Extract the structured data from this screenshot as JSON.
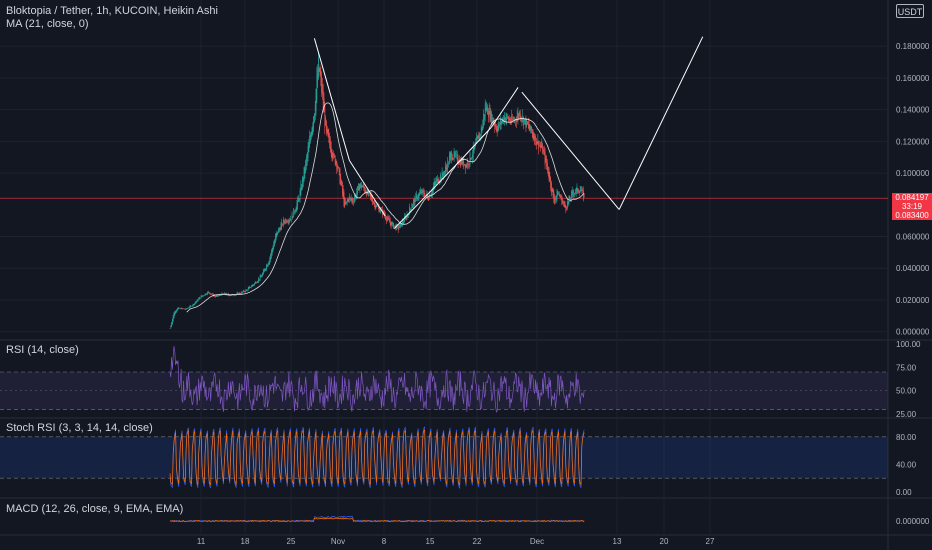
{
  "header": {
    "symbol_line": "Bloktopia / Tether, 1h, KUCOIN, Heikin Ashi",
    "ma_label": "MA (21, close, 0)",
    "currency_button": "USDT"
  },
  "price_tag": {
    "price": "0.084197",
    "countdown": "33:19",
    "ma_value": "0.083400"
  },
  "colors": {
    "background": "#131722",
    "grid": "#1e222d",
    "up_candle": "#26a69a",
    "down_candle": "#ef5350",
    "ma_line": "#ffffff",
    "rsi_line": "#7e57c2",
    "stoch_k": "#2962ff",
    "stoch_d": "#ff6d00",
    "price_line": "#f23645"
  },
  "chart_data": [
    {
      "type": "candlestick",
      "title": "Bloktopia / Tether, 1h, KUCOIN, Heikin Ashi",
      "y_ticks": [
        "0.180000",
        "0.160000",
        "0.140000",
        "0.120000",
        "0.100000",
        "0.060000",
        "0.040000",
        "0.020000",
        "0.000000"
      ],
      "ylim": [
        -0.004,
        0.206
      ],
      "x_ticks": [
        "11",
        "18",
        "25",
        "Nov",
        "8",
        "15",
        "22",
        "Dec",
        "13",
        "20",
        "27"
      ],
      "price_path": [
        [
          0,
          0.002
        ],
        [
          0.5,
          0.012
        ],
        [
          1,
          0.015
        ],
        [
          2,
          0.014
        ],
        [
          3,
          0.017
        ],
        [
          4,
          0.022
        ],
        [
          5,
          0.025
        ],
        [
          6,
          0.022
        ],
        [
          7,
          0.024
        ],
        [
          8,
          0.023
        ],
        [
          9,
          0.024
        ],
        [
          10,
          0.026
        ],
        [
          11,
          0.03
        ],
        [
          12,
          0.035
        ],
        [
          13,
          0.045
        ],
        [
          14,
          0.062
        ],
        [
          15,
          0.07
        ],
        [
          16,
          0.072
        ],
        [
          17,
          0.085
        ],
        [
          18,
          0.11
        ],
        [
          19,
          0.14
        ],
        [
          19.5,
          0.17
        ],
        [
          20,
          0.15
        ],
        [
          20.5,
          0.125
        ],
        [
          21,
          0.118
        ],
        [
          21.5,
          0.11
        ],
        [
          22,
          0.105
        ],
        [
          22.5,
          0.092
        ],
        [
          23,
          0.078
        ],
        [
          23.5,
          0.085
        ],
        [
          24,
          0.082
        ],
        [
          25,
          0.093
        ],
        [
          26,
          0.087
        ],
        [
          27,
          0.08
        ],
        [
          28,
          0.075
        ],
        [
          29,
          0.068
        ],
        [
          30,
          0.065
        ],
        [
          31,
          0.072
        ],
        [
          32,
          0.082
        ],
        [
          33,
          0.088
        ],
        [
          34,
          0.085
        ],
        [
          35,
          0.095
        ],
        [
          36,
          0.1
        ],
        [
          37,
          0.112
        ],
        [
          38,
          0.108
        ],
        [
          39,
          0.105
        ],
        [
          40,
          0.115
        ],
        [
          41,
          0.128
        ],
        [
          41.5,
          0.143
        ],
        [
          42,
          0.138
        ],
        [
          43,
          0.128
        ],
        [
          44,
          0.136
        ],
        [
          45,
          0.132
        ],
        [
          46,
          0.138
        ],
        [
          47,
          0.13
        ],
        [
          48,
          0.122
        ],
        [
          49,
          0.115
        ],
        [
          50,
          0.095
        ],
        [
          50.5,
          0.082
        ],
        [
          51,
          0.088
        ],
        [
          52,
          0.078
        ],
        [
          53,
          0.088
        ],
        [
          54,
          0.09
        ],
        [
          54.5,
          0.084
        ]
      ],
      "ma_period": 21,
      "last_price": 0.084197,
      "drawn_lines": [
        [
          [
            19,
            0.185
          ],
          [
            23.6,
            0.108
          ]
        ],
        [
          [
            23.6,
            0.108
          ],
          [
            28.3,
            0.073
          ]
        ],
        [
          [
            29.5,
            0.065
          ],
          [
            34.6,
            0.09
          ]
        ],
        [
          [
            34.6,
            0.09
          ],
          [
            38.6,
            0.11
          ]
        ],
        [
          [
            38.6,
            0.11
          ],
          [
            42.3,
            0.129
          ]
        ],
        [
          [
            42.3,
            0.129
          ],
          [
            45.8,
            0.154
          ]
        ],
        [
          [
            46.3,
            0.151
          ],
          [
            59.1,
            0.077
          ]
        ],
        [
          [
            59.1,
            0.077
          ],
          [
            70.1,
            0.186
          ]
        ]
      ]
    },
    {
      "type": "line",
      "title": "RSI (14, close)",
      "y_ticks": [
        "100.00",
        "75.00",
        "50.00",
        "25.00"
      ],
      "ylim": [
        25,
        100
      ],
      "bands": [
        30,
        70
      ]
    },
    {
      "type": "line",
      "title": "Stoch RSI (3, 3, 14, 14, close)",
      "y_ticks": [
        "80.00",
        "40.00",
        "0.00"
      ],
      "ylim": [
        0,
        100
      ],
      "bands": [
        20,
        80
      ]
    },
    {
      "type": "line",
      "title": "MACD (12, 26, close, 9, EMA, EMA)",
      "y_ticks": [
        "0.000000"
      ]
    }
  ]
}
